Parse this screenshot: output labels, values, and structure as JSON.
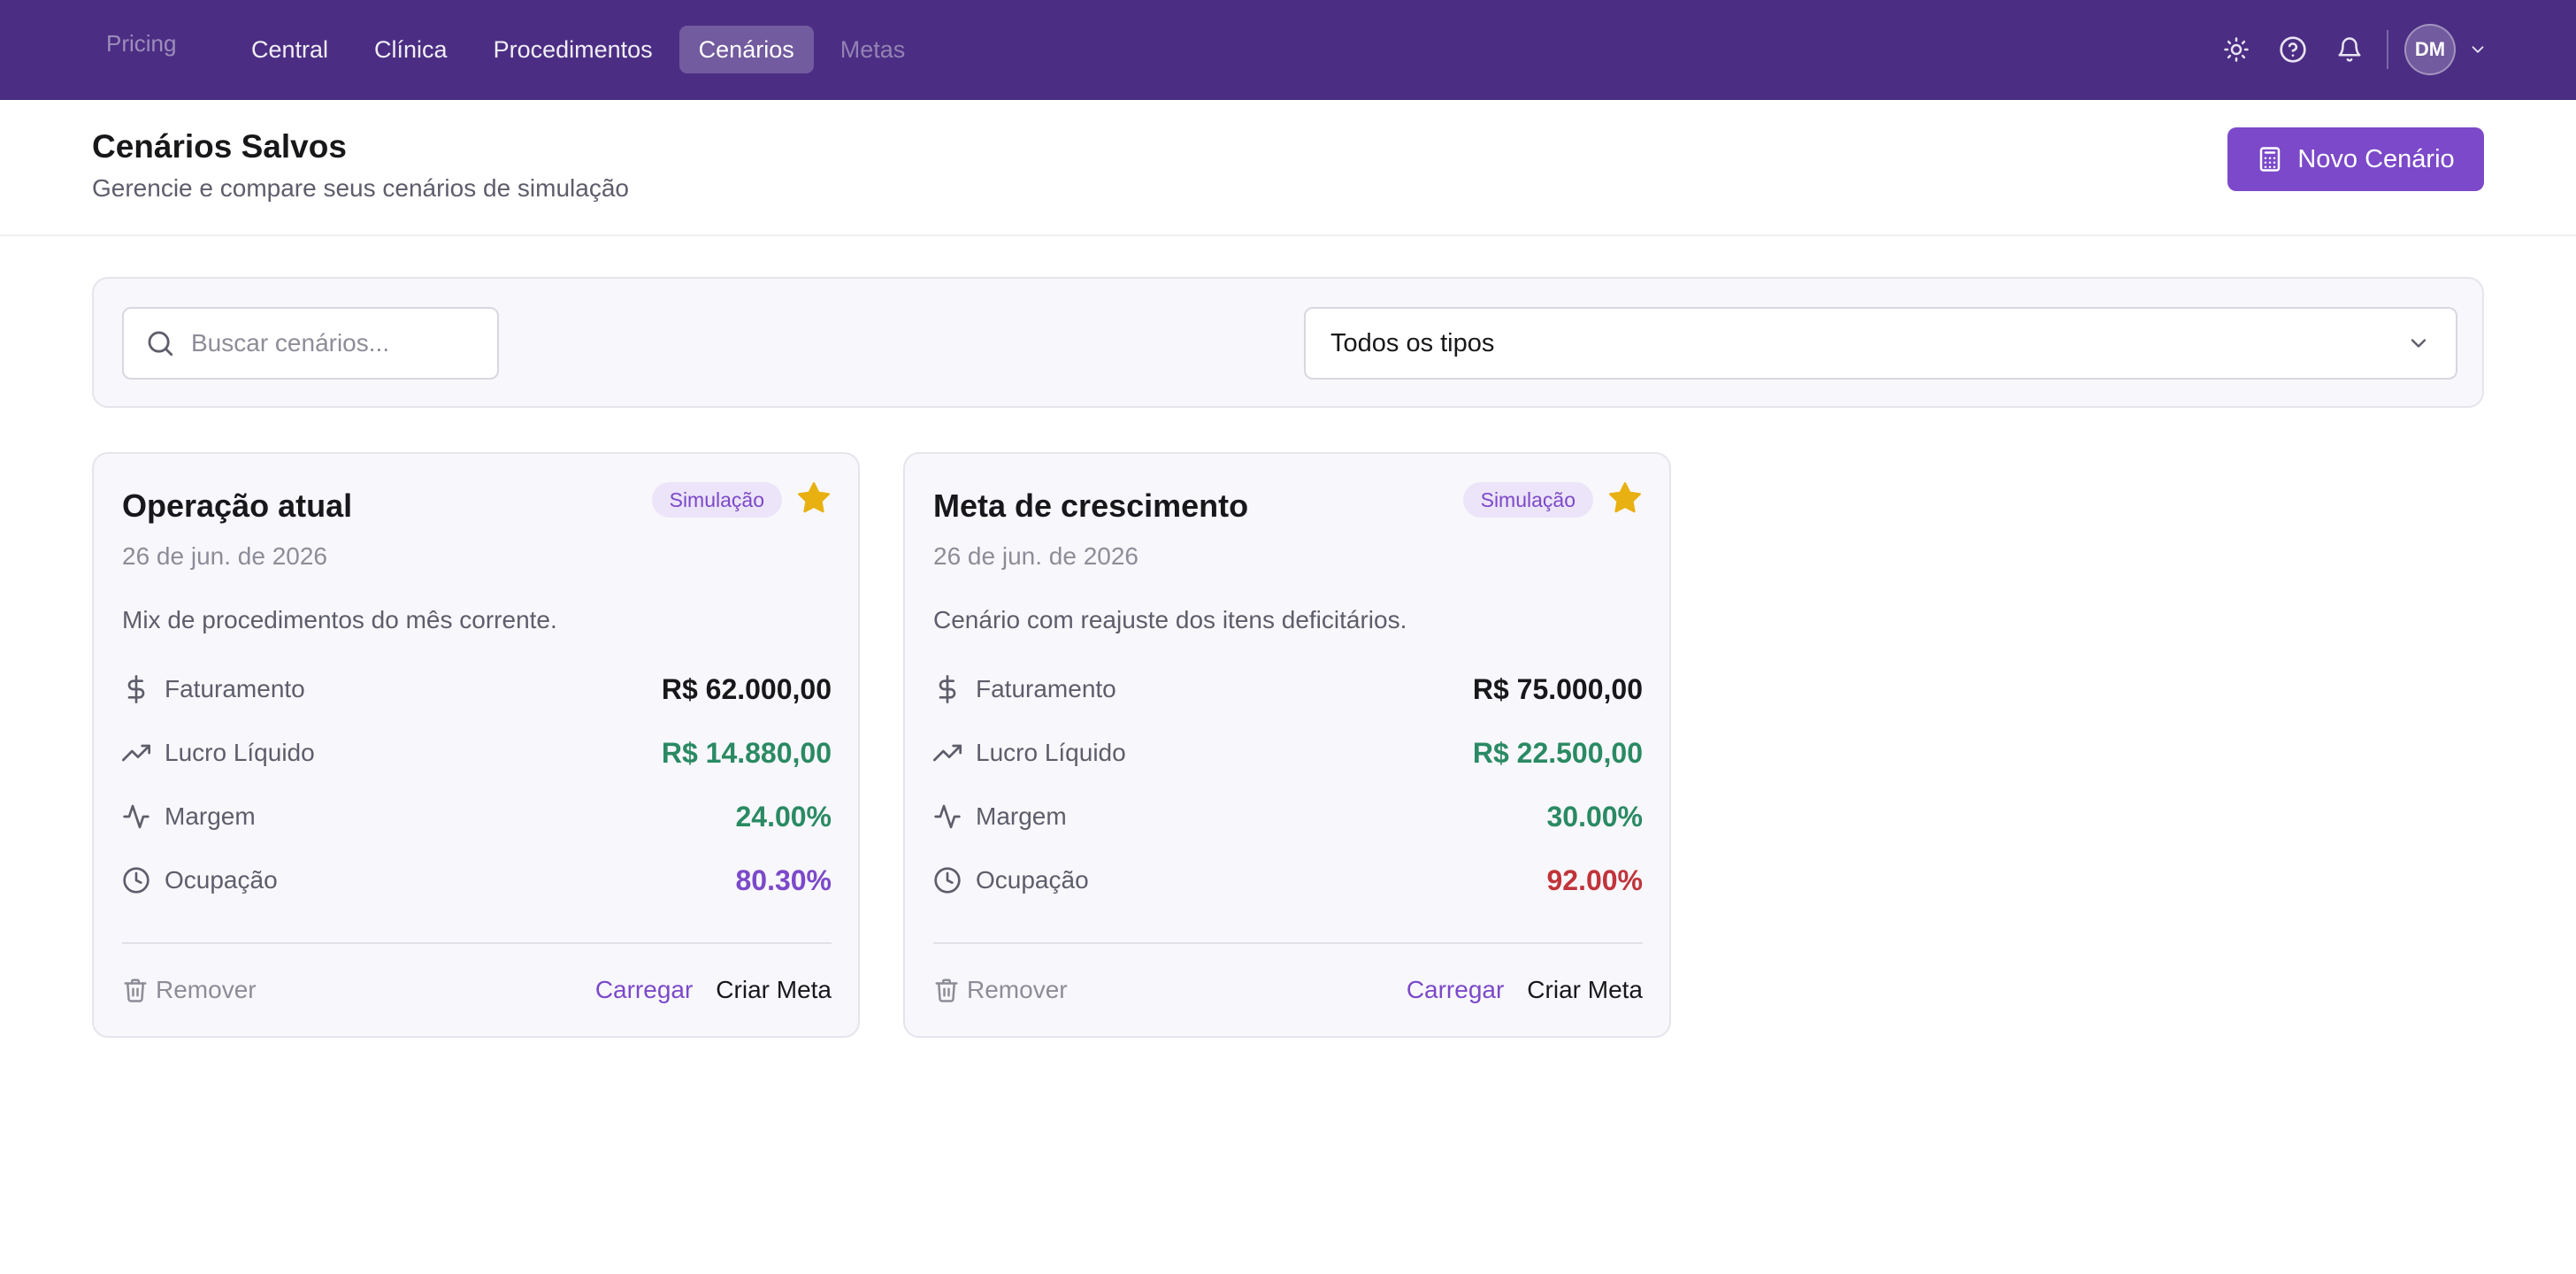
{
  "brand": "Pricing",
  "nav": [
    {
      "label": "Central"
    },
    {
      "label": "Clínica"
    },
    {
      "label": "Procedimentos"
    },
    {
      "label": "Cenários"
    },
    {
      "label": "Metas"
    }
  ],
  "nav_active": "Cenários",
  "user": {
    "initials": "DM"
  },
  "icons": {
    "theme": "sun-icon",
    "help": "help-circle-icon",
    "notifications": "bell-icon",
    "menu": "chevron-down-icon"
  },
  "header": {
    "title": "Cenários Salvos",
    "subtitle": "Gerencie e compare seus cenários de simulação",
    "new_button": "Novo Cenário"
  },
  "filters": {
    "search_placeholder": "Buscar cenários...",
    "search_value": "",
    "type_selected": "Todos os tipos"
  },
  "colors": {
    "topbar": "#4b2e83",
    "accent": "#7b49c9",
    "positive": "#2a8a63",
    "negative": "#c0343a",
    "star": "#e8b010"
  },
  "cards": [
    {
      "title": "Operação atual",
      "badge": "Simulação",
      "favorite": true,
      "date": "26 de jun. de 2026",
      "description": "Mix de procedimentos do mês corrente.",
      "metrics": [
        {
          "label": "Faturamento",
          "value": "R$ 62.000,00",
          "icon": "dollar-icon",
          "tone": "dark"
        },
        {
          "label": "Lucro Líquido",
          "value": "R$ 14.880,00",
          "icon": "trending-up-icon",
          "tone": "green"
        },
        {
          "label": "Margem",
          "value": "24.00%",
          "icon": "activity-icon",
          "tone": "green"
        },
        {
          "label": "Ocupação",
          "value": "80.30%",
          "icon": "clock-icon",
          "tone": "purple"
        }
      ],
      "actions": {
        "remove": "Remover",
        "load": "Carregar",
        "goal": "Criar Meta"
      }
    },
    {
      "title": "Meta de crescimento",
      "badge": "Simulação",
      "favorite": true,
      "date": "26 de jun. de 2026",
      "description": "Cenário com reajuste dos itens deficitários.",
      "metrics": [
        {
          "label": "Faturamento",
          "value": "R$ 75.000,00",
          "icon": "dollar-icon",
          "tone": "dark"
        },
        {
          "label": "Lucro Líquido",
          "value": "R$ 22.500,00",
          "icon": "trending-up-icon",
          "tone": "green"
        },
        {
          "label": "Margem",
          "value": "30.00%",
          "icon": "activity-icon",
          "tone": "green"
        },
        {
          "label": "Ocupação",
          "value": "92.00%",
          "icon": "clock-icon",
          "tone": "red"
        }
      ],
      "actions": {
        "remove": "Remover",
        "load": "Carregar",
        "goal": "Criar Meta"
      }
    }
  ]
}
